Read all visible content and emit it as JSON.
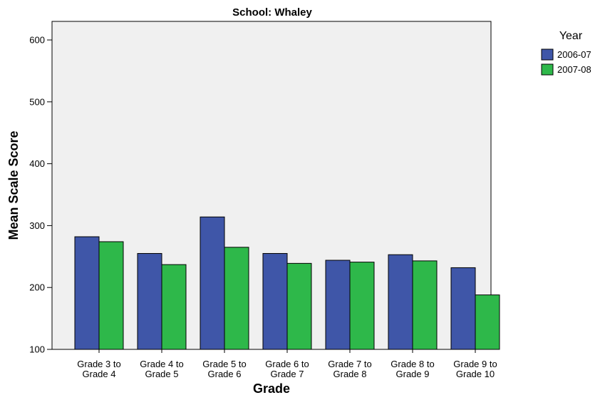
{
  "chart_data": {
    "type": "bar",
    "title": "School: Whaley",
    "xlabel": "Grade",
    "ylabel": "Mean Scale Score",
    "ylim": [
      100,
      630
    ],
    "yticks": [
      100,
      200,
      300,
      400,
      500,
      600
    ],
    "categories": [
      [
        "Grade 3 to",
        "Grade 4"
      ],
      [
        "Grade 4 to",
        "Grade 5"
      ],
      [
        "Grade 5 to",
        "Grade 6"
      ],
      [
        "Grade 6 to",
        "Grade 7"
      ],
      [
        "Grade 7 to",
        "Grade 8"
      ],
      [
        "Grade 8 to",
        "Grade 9"
      ],
      [
        "Grade 9 to",
        "Grade 10"
      ]
    ],
    "legend_title": "Year",
    "legend_position": "top-right",
    "series": [
      {
        "name": "2006-07",
        "color": "#3f56a8",
        "values": [
          282,
          255,
          314,
          255,
          244,
          253,
          232
        ]
      },
      {
        "name": "2007-08",
        "color": "#2eb84a",
        "values": [
          274,
          237,
          265,
          239,
          241,
          243,
          188
        ]
      }
    ],
    "plot_background": "#f0f0f0",
    "grid": false
  }
}
